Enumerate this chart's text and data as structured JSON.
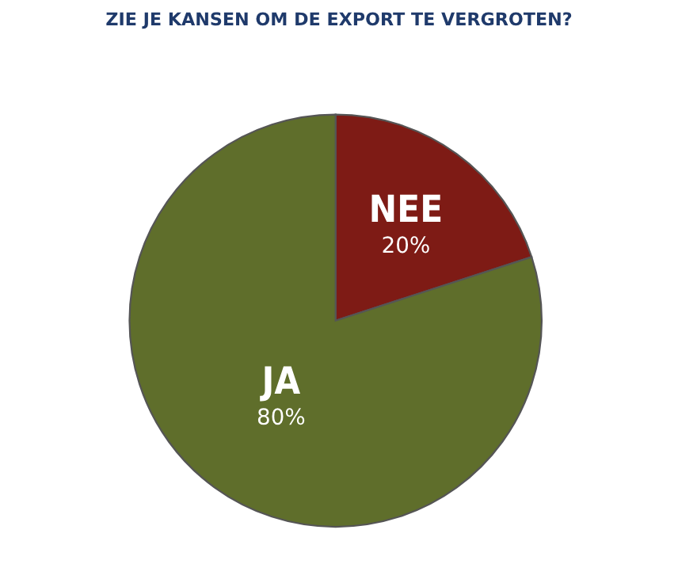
{
  "chart_data": {
    "type": "pie",
    "title": "ZIE JE KANSEN OM DE EXPORT TE VERGROTEN?",
    "categories": [
      "NEE",
      "JA"
    ],
    "values": [
      20,
      80
    ],
    "value_labels": [
      "20%",
      "80%"
    ],
    "colors": [
      "#7e1b15",
      "#5f6e2b"
    ],
    "legend": false
  }
}
